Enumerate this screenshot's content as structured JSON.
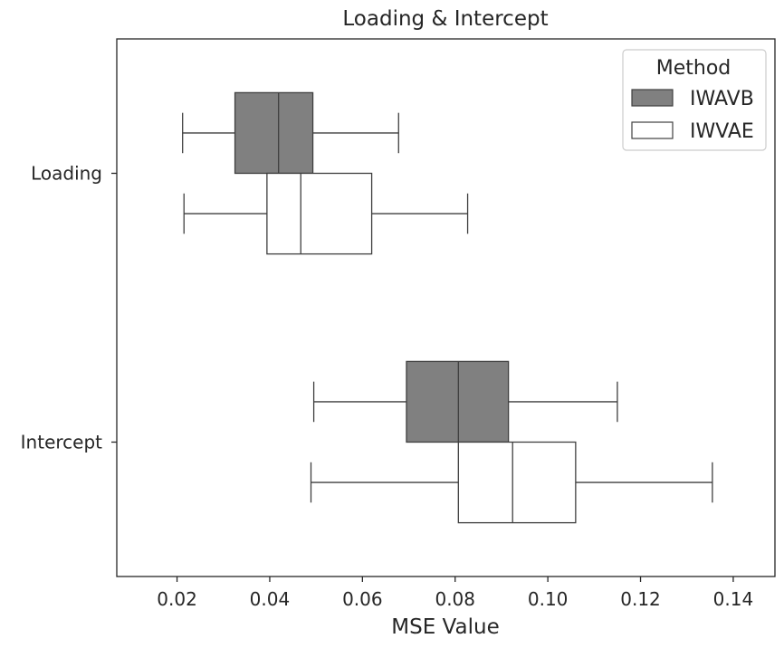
{
  "chart_data": {
    "type": "boxplot",
    "orientation": "horizontal",
    "title": "Loading & Intercept",
    "xlabel": "MSE Value",
    "ylabel": "",
    "xlim": [
      0.007,
      0.149
    ],
    "xticks": [
      0.02,
      0.04,
      0.06,
      0.08,
      0.1,
      0.12,
      0.14
    ],
    "xtick_labels": [
      "0.02",
      "0.04",
      "0.06",
      "0.08",
      "0.10",
      "0.12",
      "0.14"
    ],
    "categories": [
      "Loading",
      "Intercept"
    ],
    "series": [
      {
        "name": "IWAVB",
        "color": "#808080",
        "boxes": [
          {
            "category": "Loading",
            "whisker_low": 0.0212,
            "q1": 0.0325,
            "median": 0.0419,
            "q3": 0.0493,
            "whisker_high": 0.0678
          },
          {
            "category": "Intercept",
            "whisker_low": 0.0495,
            "q1": 0.0695,
            "median": 0.0807,
            "q3": 0.0915,
            "whisker_high": 0.115
          }
        ]
      },
      {
        "name": "IWVAE",
        "color": "#ffffff",
        "boxes": [
          {
            "category": "Loading",
            "whisker_low": 0.0215,
            "q1": 0.0394,
            "median": 0.0467,
            "q3": 0.062,
            "whisker_high": 0.0827
          },
          {
            "category": "Intercept",
            "whisker_low": 0.0489,
            "q1": 0.0807,
            "median": 0.0924,
            "q3": 0.106,
            "whisker_high": 0.1355
          }
        ]
      }
    ],
    "legend": {
      "title": "Method",
      "position": "upper-right",
      "entries": [
        "IWAVB",
        "IWVAE"
      ]
    },
    "grid": false,
    "line_color": "#3f3f3f"
  }
}
